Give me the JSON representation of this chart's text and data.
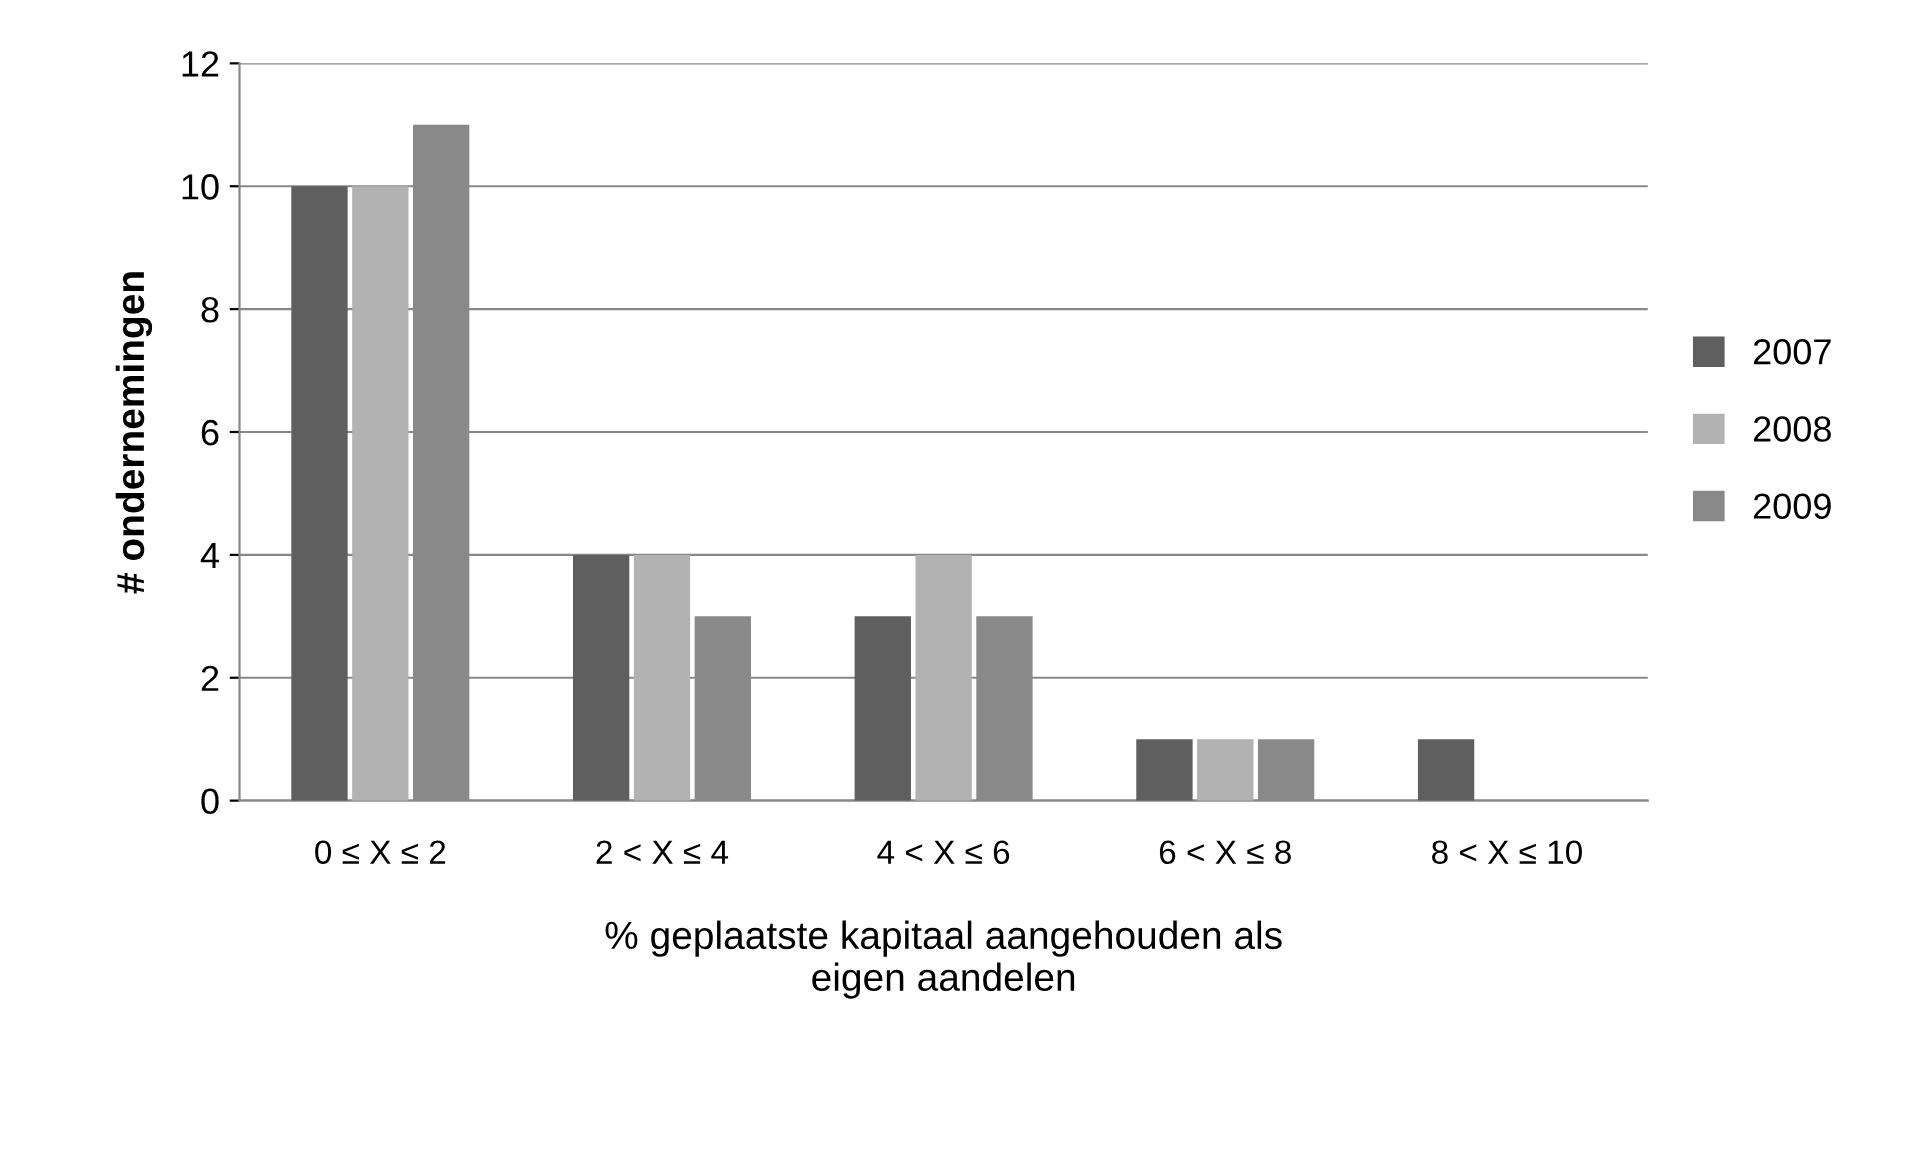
{
  "chart_data": {
    "type": "bar",
    "xlabel": "% geplaatste kapitaal aangehouden als\neigen aandelen",
    "ylabel": "# ondernemingen",
    "categories": [
      "0 ≤ X ≤ 2",
      "2 < X ≤ 4",
      "4 < X ≤ 6",
      "6 < X ≤ 8",
      "8 < X ≤ 10"
    ],
    "series": [
      {
        "name": "2007",
        "color": "#5f5f5f",
        "values": [
          10,
          4,
          3,
          1,
          1
        ]
      },
      {
        "name": "2008",
        "color": "#b2b2b2",
        "values": [
          10,
          4,
          4,
          1,
          0
        ]
      },
      {
        "name": "2009",
        "color": "#898989",
        "values": [
          11,
          3,
          3,
          1,
          0
        ]
      }
    ],
    "ylim": [
      0,
      12
    ],
    "yticks": [
      0,
      2,
      4,
      6,
      8,
      10,
      12
    ],
    "grid": "y",
    "legend": "right"
  }
}
